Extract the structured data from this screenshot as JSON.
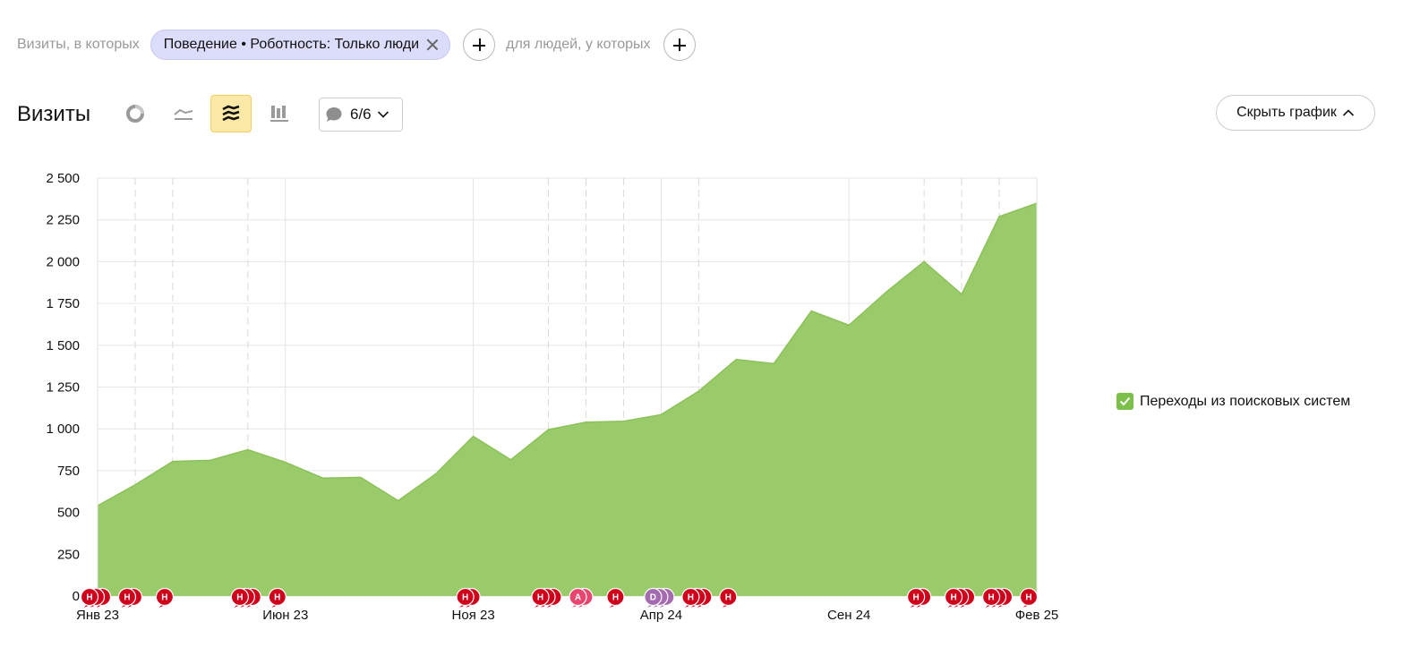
{
  "filters": {
    "prefix": "Визиты, в которых",
    "chip_label": "Поведение • Роботность: Только люди",
    "people_label": "для людей, у которых"
  },
  "header": {
    "title": "Визиты",
    "chart_types": [
      {
        "name": "pie-chart-icon",
        "active": false
      },
      {
        "name": "line-chart-icon",
        "active": false
      },
      {
        "name": "area-chart-icon",
        "active": true
      },
      {
        "name": "bar-chart-icon",
        "active": false
      }
    ],
    "notes_count": "6/6",
    "hide_chart_label": "Скрыть график"
  },
  "colors": {
    "area": "#9acb6b",
    "marker_red": "#d0021b",
    "marker_pink": "#e8466f",
    "marker_purple": "#a56bb0",
    "accent_yellow": "#fde9a7"
  },
  "chart_data": {
    "type": "area",
    "title": "",
    "xlabel": "",
    "ylabel": "",
    "ylim": [
      0,
      2500
    ],
    "yticks": [
      0,
      250,
      500,
      750,
      1000,
      1250,
      1500,
      1750,
      2000,
      2250,
      2500
    ],
    "ytick_labels": [
      "0",
      "250",
      "500",
      "750",
      "1 000",
      "1 250",
      "1 500",
      "1 750",
      "2 000",
      "2 250",
      "2 500"
    ],
    "x": [
      "2023-01",
      "2023-02",
      "2023-03",
      "2023-04",
      "2023-05",
      "2023-06",
      "2023-07",
      "2023-08",
      "2023-09",
      "2023-10",
      "2023-11",
      "2023-12",
      "2024-01",
      "2024-02",
      "2024-03",
      "2024-04",
      "2024-05",
      "2024-06",
      "2024-07",
      "2024-08",
      "2024-09",
      "2024-10",
      "2024-11",
      "2024-12",
      "2025-01",
      "2025-02"
    ],
    "xtick_labels": [
      {
        "x": "2023-01",
        "label": "Янв 23"
      },
      {
        "x": "2023-06",
        "label": "Июн 23"
      },
      {
        "x": "2023-11",
        "label": "Ноя 23"
      },
      {
        "x": "2024-04",
        "label": "Апр 24"
      },
      {
        "x": "2024-09",
        "label": "Сен 24"
      },
      {
        "x": "2025-02",
        "label": "Фев 25"
      }
    ],
    "dashed_lines": [
      "2023-02",
      "2023-03",
      "2023-05",
      "2024-01",
      "2024-02",
      "2024-03",
      "2024-05",
      "2024-11",
      "2024-12",
      "2025-01"
    ],
    "series": [
      {
        "name": "Переходы из поисковых систем",
        "values": [
          540,
          665,
          805,
          812,
          875,
          800,
          705,
          710,
          570,
          730,
          955,
          815,
          995,
          1040,
          1045,
          1085,
          1225,
          1415,
          1390,
          1705,
          1620,
          1820,
          2000,
          1805,
          2270,
          2350
        ]
      }
    ],
    "notes": [
      {
        "x": "2023-01",
        "letter": "Н",
        "stack": 3,
        "color": "red"
      },
      {
        "x": "2023-02",
        "letter": "Н",
        "stack": 2,
        "color": "red"
      },
      {
        "x": "2023-03",
        "letter": "Н",
        "stack": 1,
        "color": "red"
      },
      {
        "x": "2023-05",
        "letter": "Н",
        "stack": 3,
        "color": "red"
      },
      {
        "x": "2023-06",
        "letter": "Н",
        "stack": 1,
        "color": "red"
      },
      {
        "x": "2023-11",
        "letter": "Н",
        "stack": 2,
        "color": "red"
      },
      {
        "x": "2024-01",
        "letter": "Н",
        "stack": 3,
        "color": "red"
      },
      {
        "x": "2024-02",
        "letter": "А",
        "stack": 2,
        "color": "pink"
      },
      {
        "x": "2024-03",
        "letter": "Н",
        "stack": 1,
        "color": "red"
      },
      {
        "x": "2024-04",
        "letter": "D",
        "stack": 3,
        "color": "purple"
      },
      {
        "x": "2024-05",
        "letter": "Н",
        "stack": 3,
        "color": "red"
      },
      {
        "x": "2024-06",
        "letter": "Н",
        "stack": 1,
        "color": "red"
      },
      {
        "x": "2024-11",
        "letter": "Н",
        "stack": 2,
        "color": "red"
      },
      {
        "x": "2024-12",
        "letter": "Н",
        "stack": 3,
        "color": "red"
      },
      {
        "x": "2025-01",
        "letter": "Н",
        "stack": 3,
        "color": "red"
      },
      {
        "x": "2025-02",
        "letter": "Н",
        "stack": 1,
        "color": "red"
      }
    ],
    "grid": true,
    "legend": "right"
  }
}
